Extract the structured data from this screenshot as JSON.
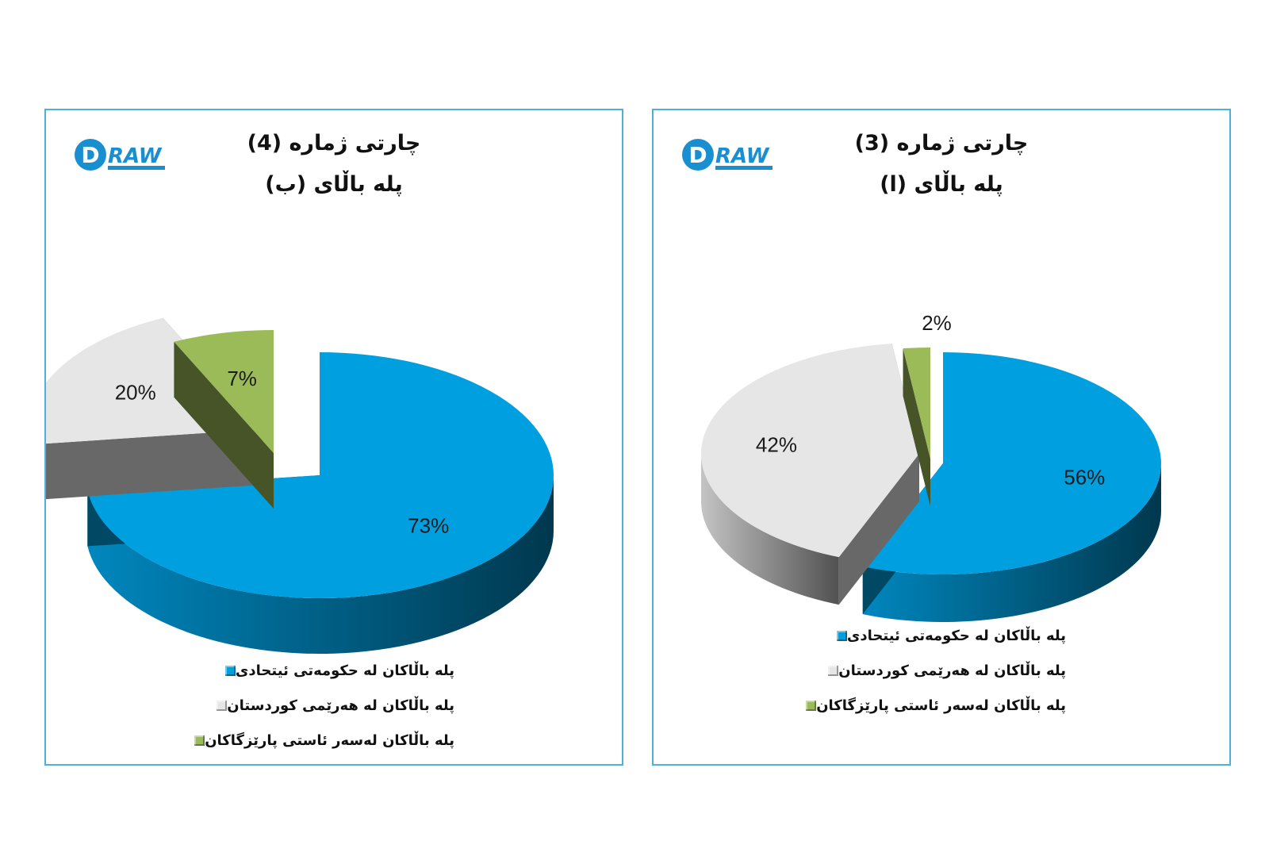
{
  "colors": {
    "federal": "#009fdf",
    "kurdistan": "#e6e6e6",
    "provinces": "#9bbb59",
    "border": "#4fb0d8"
  },
  "logo": {
    "text": "RAW",
    "initial": "D"
  },
  "chart_data": [
    {
      "type": "pie",
      "title": "چارتی ژمارە (4)",
      "subtitle": "پلە باڵای (ب)",
      "legend_position": "bottom",
      "categories": [
        "پلە باڵاکان لە حکومەتی ئیتحادی",
        "پلە باڵاکان لە هەرێمی کوردستان",
        "پلە باڵاکان لەسەر ئاستی پارێزگاکان"
      ],
      "values": [
        73,
        20,
        7
      ],
      "labels": [
        "73%",
        "20%",
        "7%"
      ]
    },
    {
      "type": "pie",
      "title": "چارتی ژمارە (3)",
      "subtitle": "پلە باڵای (ا)",
      "legend_position": "bottom",
      "categories": [
        "پلە باڵاکان لە حکومەتی ئیتحادی",
        "پلە باڵاکان لە هەرێمی کوردستان",
        "پلە باڵاکان لەسەر ئاستی پارێزگاکان"
      ],
      "values": [
        56,
        42,
        2
      ],
      "labels": [
        "56%",
        "42%",
        "2%"
      ]
    }
  ]
}
